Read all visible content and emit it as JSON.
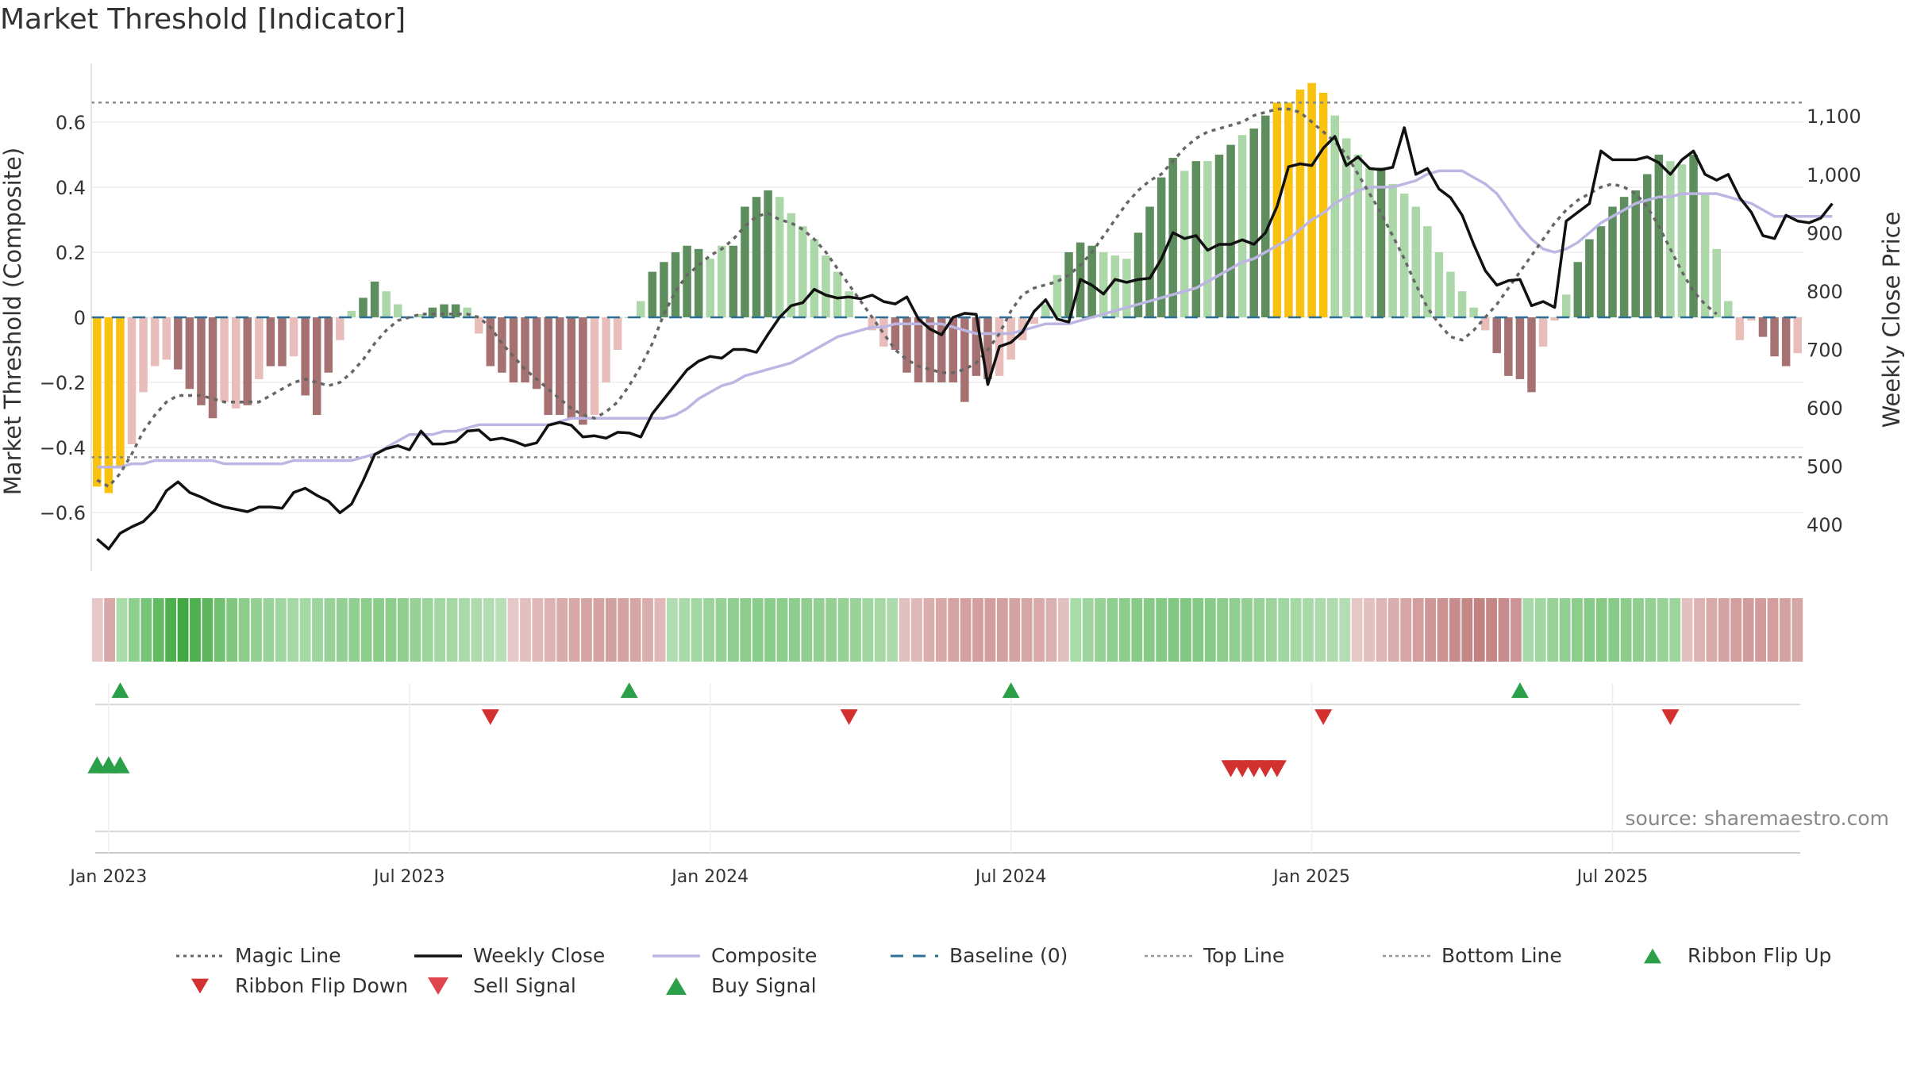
{
  "chart_data": {
    "type": "bar",
    "title": "Market Threshold [Indicator]",
    "ylabel": "Market Threshold (Composite)",
    "y2label": "Weekly Close Price",
    "source": "source: sharemaestro.com",
    "ylim": [
      -0.78,
      0.78
    ],
    "y2lim": [
      320,
      1190
    ],
    "yticks": [
      0.6,
      0.4,
      0.2,
      0,
      -0.2,
      -0.4,
      -0.6
    ],
    "ytick_labels": [
      "0.6",
      "0.4",
      "0.2",
      "0",
      "−0.2",
      "−0.4",
      "−0.6"
    ],
    "y2ticks": [
      1100,
      1000,
      900,
      800,
      700,
      600,
      500,
      400
    ],
    "y2tick_labels": [
      "1,100",
      "1,000",
      "900",
      "800",
      "700",
      "600",
      "500",
      "400"
    ],
    "xticks": [
      {
        "week": 1,
        "label": "Jan 2023"
      },
      {
        "week": 27,
        "label": "Jul 2023"
      },
      {
        "week": 53,
        "label": "Jan 2024"
      },
      {
        "week": 79,
        "label": "Jul 2024"
      },
      {
        "week": 105,
        "label": "Jan 2025"
      },
      {
        "week": 131,
        "label": "Jul 2025"
      }
    ],
    "top_line": 0.66,
    "bottom_line": -0.43,
    "colors": {
      "yellow": "#f9c20f",
      "dark_green": "#5e8e5d",
      "light_green": "#acd7a8",
      "dark_red": "#a57171",
      "light_red": "#e8bdba",
      "weekly_close": "#111111",
      "composite": "#bdb6e3",
      "magic_line": "#666666",
      "baseline": "#2e6f95",
      "buy": "#2ca048",
      "sell": "#d33030"
    },
    "composite_bars": [
      {
        "v": -0.52,
        "c": "yellow"
      },
      {
        "v": -0.54,
        "c": "yellow"
      },
      {
        "v": -0.46,
        "c": "yellow"
      },
      {
        "v": -0.39,
        "c": "light_red"
      },
      {
        "v": -0.23,
        "c": "light_red"
      },
      {
        "v": -0.15,
        "c": "light_red"
      },
      {
        "v": -0.13,
        "c": "light_red"
      },
      {
        "v": -0.16,
        "c": "dark_red"
      },
      {
        "v": -0.22,
        "c": "dark_red"
      },
      {
        "v": -0.27,
        "c": "dark_red"
      },
      {
        "v": -0.31,
        "c": "dark_red"
      },
      {
        "v": -0.26,
        "c": "light_red"
      },
      {
        "v": -0.28,
        "c": "light_red"
      },
      {
        "v": -0.27,
        "c": "dark_red"
      },
      {
        "v": -0.19,
        "c": "light_red"
      },
      {
        "v": -0.15,
        "c": "dark_red"
      },
      {
        "v": -0.15,
        "c": "dark_red"
      },
      {
        "v": -0.12,
        "c": "light_red"
      },
      {
        "v": -0.24,
        "c": "dark_red"
      },
      {
        "v": -0.3,
        "c": "dark_red"
      },
      {
        "v": -0.17,
        "c": "dark_red"
      },
      {
        "v": -0.07,
        "c": "light_red"
      },
      {
        "v": 0.02,
        "c": "light_green"
      },
      {
        "v": 0.06,
        "c": "dark_green"
      },
      {
        "v": 0.11,
        "c": "dark_green"
      },
      {
        "v": 0.08,
        "c": "light_green"
      },
      {
        "v": 0.04,
        "c": "light_green"
      },
      {
        "v": 0.0,
        "c": "light_green"
      },
      {
        "v": 0.01,
        "c": "light_green"
      },
      {
        "v": 0.03,
        "c": "dark_green"
      },
      {
        "v": 0.04,
        "c": "dark_green"
      },
      {
        "v": 0.04,
        "c": "dark_green"
      },
      {
        "v": 0.03,
        "c": "light_green"
      },
      {
        "v": -0.05,
        "c": "light_red"
      },
      {
        "v": -0.15,
        "c": "dark_red"
      },
      {
        "v": -0.17,
        "c": "dark_red"
      },
      {
        "v": -0.2,
        "c": "dark_red"
      },
      {
        "v": -0.2,
        "c": "dark_red"
      },
      {
        "v": -0.22,
        "c": "dark_red"
      },
      {
        "v": -0.3,
        "c": "dark_red"
      },
      {
        "v": -0.3,
        "c": "dark_red"
      },
      {
        "v": -0.31,
        "c": "dark_red"
      },
      {
        "v": -0.33,
        "c": "dark_red"
      },
      {
        "v": -0.3,
        "c": "light_red"
      },
      {
        "v": -0.2,
        "c": "light_red"
      },
      {
        "v": -0.1,
        "c": "light_red"
      },
      {
        "v": 0.0,
        "c": "light_green"
      },
      {
        "v": 0.05,
        "c": "light_green"
      },
      {
        "v": 0.14,
        "c": "dark_green"
      },
      {
        "v": 0.17,
        "c": "dark_green"
      },
      {
        "v": 0.2,
        "c": "dark_green"
      },
      {
        "v": 0.22,
        "c": "dark_green"
      },
      {
        "v": 0.21,
        "c": "dark_green"
      },
      {
        "v": 0.18,
        "c": "light_green"
      },
      {
        "v": 0.22,
        "c": "light_green"
      },
      {
        "v": 0.22,
        "c": "dark_green"
      },
      {
        "v": 0.34,
        "c": "dark_green"
      },
      {
        "v": 0.37,
        "c": "dark_green"
      },
      {
        "v": 0.39,
        "c": "dark_green"
      },
      {
        "v": 0.37,
        "c": "light_green"
      },
      {
        "v": 0.32,
        "c": "light_green"
      },
      {
        "v": 0.28,
        "c": "light_green"
      },
      {
        "v": 0.24,
        "c": "light_green"
      },
      {
        "v": 0.19,
        "c": "light_green"
      },
      {
        "v": 0.14,
        "c": "light_green"
      },
      {
        "v": 0.08,
        "c": "light_green"
      },
      {
        "v": 0.0,
        "c": "light_green"
      },
      {
        "v": -0.04,
        "c": "light_red"
      },
      {
        "v": -0.09,
        "c": "light_red"
      },
      {
        "v": -0.1,
        "c": "dark_red"
      },
      {
        "v": -0.17,
        "c": "dark_red"
      },
      {
        "v": -0.2,
        "c": "dark_red"
      },
      {
        "v": -0.2,
        "c": "dark_red"
      },
      {
        "v": -0.2,
        "c": "dark_red"
      },
      {
        "v": -0.2,
        "c": "dark_red"
      },
      {
        "v": -0.26,
        "c": "dark_red"
      },
      {
        "v": -0.18,
        "c": "dark_red"
      },
      {
        "v": -0.19,
        "c": "dark_red"
      },
      {
        "v": -0.18,
        "c": "light_red"
      },
      {
        "v": -0.13,
        "c": "light_red"
      },
      {
        "v": -0.07,
        "c": "light_red"
      },
      {
        "v": -0.02,
        "c": "light_red"
      },
      {
        "v": 0.04,
        "c": "light_green"
      },
      {
        "v": 0.13,
        "c": "light_green"
      },
      {
        "v": 0.2,
        "c": "dark_green"
      },
      {
        "v": 0.23,
        "c": "dark_green"
      },
      {
        "v": 0.22,
        "c": "dark_green"
      },
      {
        "v": 0.2,
        "c": "light_green"
      },
      {
        "v": 0.19,
        "c": "light_green"
      },
      {
        "v": 0.18,
        "c": "light_green"
      },
      {
        "v": 0.26,
        "c": "dark_green"
      },
      {
        "v": 0.34,
        "c": "dark_green"
      },
      {
        "v": 0.43,
        "c": "dark_green"
      },
      {
        "v": 0.49,
        "c": "dark_green"
      },
      {
        "v": 0.45,
        "c": "light_green"
      },
      {
        "v": 0.48,
        "c": "dark_green"
      },
      {
        "v": 0.48,
        "c": "light_green"
      },
      {
        "v": 0.5,
        "c": "dark_green"
      },
      {
        "v": 0.53,
        "c": "dark_green"
      },
      {
        "v": 0.56,
        "c": "light_green"
      },
      {
        "v": 0.58,
        "c": "dark_green"
      },
      {
        "v": 0.62,
        "c": "dark_green"
      },
      {
        "v": 0.66,
        "c": "yellow"
      },
      {
        "v": 0.66,
        "c": "yellow"
      },
      {
        "v": 0.7,
        "c": "yellow"
      },
      {
        "v": 0.72,
        "c": "yellow"
      },
      {
        "v": 0.69,
        "c": "yellow"
      },
      {
        "v": 0.62,
        "c": "light_green"
      },
      {
        "v": 0.55,
        "c": "light_green"
      },
      {
        "v": 0.5,
        "c": "light_green"
      },
      {
        "v": 0.46,
        "c": "light_green"
      },
      {
        "v": 0.46,
        "c": "dark_green"
      },
      {
        "v": 0.41,
        "c": "light_green"
      },
      {
        "v": 0.38,
        "c": "light_green"
      },
      {
        "v": 0.34,
        "c": "light_green"
      },
      {
        "v": 0.28,
        "c": "light_green"
      },
      {
        "v": 0.2,
        "c": "light_green"
      },
      {
        "v": 0.14,
        "c": "light_green"
      },
      {
        "v": 0.08,
        "c": "light_green"
      },
      {
        "v": 0.03,
        "c": "light_green"
      },
      {
        "v": -0.04,
        "c": "light_red"
      },
      {
        "v": -0.11,
        "c": "dark_red"
      },
      {
        "v": -0.18,
        "c": "dark_red"
      },
      {
        "v": -0.19,
        "c": "dark_red"
      },
      {
        "v": -0.23,
        "c": "dark_red"
      },
      {
        "v": -0.09,
        "c": "light_red"
      },
      {
        "v": -0.01,
        "c": "light_red"
      },
      {
        "v": 0.07,
        "c": "light_green"
      },
      {
        "v": 0.17,
        "c": "dark_green"
      },
      {
        "v": 0.24,
        "c": "dark_green"
      },
      {
        "v": 0.28,
        "c": "dark_green"
      },
      {
        "v": 0.34,
        "c": "dark_green"
      },
      {
        "v": 0.37,
        "c": "dark_green"
      },
      {
        "v": 0.39,
        "c": "dark_green"
      },
      {
        "v": 0.44,
        "c": "dark_green"
      },
      {
        "v": 0.5,
        "c": "dark_green"
      },
      {
        "v": 0.48,
        "c": "light_green"
      },
      {
        "v": 0.47,
        "c": "light_green"
      },
      {
        "v": 0.5,
        "c": "dark_green"
      },
      {
        "v": 0.38,
        "c": "light_green"
      },
      {
        "v": 0.21,
        "c": "light_green"
      },
      {
        "v": 0.05,
        "c": "light_green"
      },
      {
        "v": -0.07,
        "c": "light_red"
      },
      {
        "v": -0.01,
        "c": "light_red"
      },
      {
        "v": -0.06,
        "c": "dark_red"
      },
      {
        "v": -0.12,
        "c": "dark_red"
      },
      {
        "v": -0.15,
        "c": "dark_red"
      },
      {
        "v": -0.11,
        "c": "light_red"
      }
    ],
    "weekly_close": [
      375,
      358,
      385,
      396,
      405,
      425,
      458,
      473,
      455,
      447,
      437,
      430,
      426,
      422,
      430,
      430,
      428,
      455,
      462,
      450,
      440,
      420,
      435,
      475,
      520,
      530,
      535,
      528,
      560,
      538,
      538,
      542,
      560,
      562,
      545,
      548,
      543,
      535,
      540,
      570,
      575,
      570,
      550,
      552,
      548,
      558,
      557,
      550,
      590,
      615,
      640,
      665,
      680,
      688,
      685,
      700,
      700,
      695,
      726,
      755,
      775,
      780,
      803,
      793,
      788,
      790,
      787,
      793,
      782,
      778,
      790,
      752,
      735,
      725,
      755,
      762,
      760,
      640,
      705,
      712,
      730,
      765,
      785,
      752,
      747,
      820,
      810,
      795,
      820,
      815,
      820,
      822,
      855,
      900,
      890,
      895,
      870,
      880,
      880,
      888,
      880,
      900,
      945,
      1013,
      1018,
      1015,
      1045,
      1065,
      1015,
      1030,
      1010,
      1008,
      1012,
      1080,
      1000,
      1010,
      975,
      960,
      930,
      880,
      835,
      810,
      818,
      820,
      775,
      782,
      772,
      920,
      935,
      950,
      1040,
      1025,
      1025,
      1025,
      1030,
      1020,
      1000,
      1025,
      1040,
      1000,
      990,
      1000,
      960,
      935,
      895,
      890,
      930,
      920,
      917,
      925,
      950
    ],
    "composite_line": [
      -0.46,
      -0.46,
      -0.46,
      -0.45,
      -0.45,
      -0.44,
      -0.44,
      -0.44,
      -0.44,
      -0.44,
      -0.44,
      -0.45,
      -0.45,
      -0.45,
      -0.45,
      -0.45,
      -0.45,
      -0.44,
      -0.44,
      -0.44,
      -0.44,
      -0.44,
      -0.44,
      -0.43,
      -0.42,
      -0.4,
      -0.38,
      -0.36,
      -0.36,
      -0.36,
      -0.35,
      -0.35,
      -0.34,
      -0.33,
      -0.33,
      -0.33,
      -0.33,
      -0.33,
      -0.33,
      -0.33,
      -0.32,
      -0.31,
      -0.31,
      -0.31,
      -0.31,
      -0.31,
      -0.31,
      -0.31,
      -0.31,
      -0.31,
      -0.3,
      -0.28,
      -0.25,
      -0.23,
      -0.21,
      -0.2,
      -0.18,
      -0.17,
      -0.16,
      -0.15,
      -0.14,
      -0.12,
      -0.1,
      -0.08,
      -0.06,
      -0.05,
      -0.04,
      -0.03,
      -0.03,
      -0.02,
      -0.02,
      -0.02,
      -0.02,
      -0.02,
      -0.03,
      -0.04,
      -0.05,
      -0.05,
      -0.05,
      -0.05,
      -0.04,
      -0.03,
      -0.02,
      -0.02,
      -0.02,
      -0.01,
      0.0,
      0.01,
      0.02,
      0.03,
      0.04,
      0.05,
      0.06,
      0.07,
      0.08,
      0.09,
      0.11,
      0.13,
      0.15,
      0.17,
      0.18,
      0.2,
      0.22,
      0.24,
      0.27,
      0.3,
      0.32,
      0.35,
      0.37,
      0.39,
      0.4,
      0.4,
      0.4,
      0.41,
      0.42,
      0.44,
      0.45,
      0.45,
      0.45,
      0.43,
      0.41,
      0.38,
      0.33,
      0.28,
      0.24,
      0.21,
      0.2,
      0.21,
      0.23,
      0.26,
      0.29,
      0.31,
      0.33,
      0.35,
      0.36,
      0.37,
      0.37,
      0.38,
      0.38,
      0.38,
      0.38,
      0.37,
      0.36,
      0.35,
      0.33,
      0.31,
      0.31,
      0.31,
      0.31,
      0.31,
      0.31
    ],
    "magic_line": [
      -0.5,
      -0.52,
      -0.48,
      -0.42,
      -0.35,
      -0.3,
      -0.26,
      -0.24,
      -0.24,
      -0.24,
      -0.25,
      -0.26,
      -0.26,
      -0.26,
      -0.26,
      -0.24,
      -0.22,
      -0.2,
      -0.19,
      -0.2,
      -0.21,
      -0.2,
      -0.17,
      -0.13,
      -0.08,
      -0.04,
      -0.01,
      0.0,
      0.01,
      0.01,
      0.01,
      0.01,
      0.01,
      0.0,
      -0.03,
      -0.08,
      -0.12,
      -0.16,
      -0.19,
      -0.22,
      -0.25,
      -0.28,
      -0.3,
      -0.31,
      -0.29,
      -0.26,
      -0.21,
      -0.15,
      -0.08,
      0.01,
      0.08,
      0.13,
      0.16,
      0.19,
      0.21,
      0.24,
      0.28,
      0.31,
      0.32,
      0.3,
      0.29,
      0.27,
      0.24,
      0.2,
      0.15,
      0.1,
      0.05,
      0.0,
      -0.05,
      -0.1,
      -0.13,
      -0.15,
      -0.16,
      -0.17,
      -0.17,
      -0.16,
      -0.14,
      -0.1,
      -0.05,
      0.02,
      0.07,
      0.09,
      0.1,
      0.11,
      0.13,
      0.16,
      0.2,
      0.25,
      0.3,
      0.35,
      0.39,
      0.42,
      0.44,
      0.48,
      0.52,
      0.55,
      0.57,
      0.58,
      0.59,
      0.6,
      0.62,
      0.63,
      0.64,
      0.64,
      0.63,
      0.6,
      0.57,
      0.54,
      0.5,
      0.44,
      0.38,
      0.32,
      0.25,
      0.18,
      0.1,
      0.03,
      -0.02,
      -0.06,
      -0.07,
      -0.04,
      0.0,
      0.04,
      0.09,
      0.14,
      0.19,
      0.24,
      0.29,
      0.33,
      0.36,
      0.38,
      0.4,
      0.41,
      0.4,
      0.38,
      0.34,
      0.28,
      0.21,
      0.14,
      0.08,
      0.04,
      0.01
    ],
    "ribbon_colors": [
      "#e6c8c8",
      "#d8a8a8",
      "#a8dca8",
      "#8dd08d",
      "#76c476",
      "#62ba62",
      "#4eaf4e",
      "#42a842",
      "#4eaf4e",
      "#5db65d",
      "#70c070",
      "#80c880",
      "#8ccd8c",
      "#94d094",
      "#9ad39a",
      "#a0d6a0",
      "#a4d8a4",
      "#a4d8a4",
      "#9ed59e",
      "#98d298",
      "#94d094",
      "#90ce90",
      "#8ccd8c",
      "#8acc8a",
      "#8ccd8c",
      "#90ce90",
      "#96d196",
      "#9cd49c",
      "#a2d7a2",
      "#a6d8a6",
      "#aad9aa",
      "#aedbae",
      "#b2dcb2",
      "#b8dfb8",
      "#e6c8c8",
      "#e2c0c0",
      "#dfb8b8",
      "#dcb2b2",
      "#d9acac",
      "#d7a8a8",
      "#d5a4a4",
      "#d4a2a2",
      "#d3a0a0",
      "#d4a2a2",
      "#d6a6a6",
      "#dbaeae",
      "#e0b8b8",
      "#b2dcb2",
      "#aad9aa",
      "#a2d7a2",
      "#9cd49c",
      "#96d196",
      "#90ce90",
      "#8ccd8c",
      "#8acc8a",
      "#8acc8a",
      "#8ccd8c",
      "#8ecd8e",
      "#90ce90",
      "#92cf92",
      "#94d094",
      "#96d196",
      "#9ad39a",
      "#a0d6a0",
      "#a6d8a6",
      "#aedbae",
      "#e2c0c0",
      "#dfb8b8",
      "#dbaeae",
      "#d8a8a8",
      "#d6a4a4",
      "#d4a0a0",
      "#d29e9e",
      "#d29e9e",
      "#d3a0a0",
      "#d4a2a2",
      "#d6a6a6",
      "#d8aaaa",
      "#dbb0b0",
      "#e2c0c0",
      "#a8dca8",
      "#9ed59e",
      "#96d196",
      "#90ce90",
      "#8ccd8c",
      "#88cb88",
      "#86ca86",
      "#84c984",
      "#82c882",
      "#82c882",
      "#84c984",
      "#88cb88",
      "#8ccd8c",
      "#90ce90",
      "#94d094",
      "#98d298",
      "#9cd49c",
      "#a0d6a0",
      "#a4d8a4",
      "#a8d9a8",
      "#acdaac",
      "#b0dbb0",
      "#b4ddb4",
      "#e6c8c8",
      "#e2c0c0",
      "#deb6b6",
      "#daaeae",
      "#d6a6a6",
      "#d29e9e",
      "#ce9898",
      "#cb9292",
      "#c88c8c",
      "#c58686",
      "#c38282",
      "#c58686",
      "#c88c8c",
      "#cc9494",
      "#a8d9a8",
      "#a0d6a0",
      "#98d298",
      "#92cf92",
      "#8ccd8c",
      "#88cb88",
      "#86ca86",
      "#88cb88",
      "#8ccd8c",
      "#90ce90",
      "#94d094",
      "#98d298",
      "#9cd49c",
      "#e2c0c0",
      "#dcb2b2",
      "#d8aaaa",
      "#d4a2a2",
      "#d29e9e",
      "#d09c9c",
      "#d09c9c",
      "#d29e9e",
      "#d4a2a2",
      "#d6a6a6"
    ],
    "ribbon_flip_up_weeks": [
      2,
      46,
      79,
      123
    ],
    "ribbon_flip_down_weeks": [
      34,
      65,
      106,
      136
    ],
    "buy_signal_weeks": [
      0,
      1,
      2
    ],
    "sell_signal_weeks": [
      98,
      99,
      100,
      101,
      102
    ],
    "legend": [
      {
        "label": "Magic Line",
        "style": "dotted-grey"
      },
      {
        "label": "Weekly Close",
        "style": "solid-black"
      },
      {
        "label": "Composite",
        "style": "solid-lavender"
      },
      {
        "label": "Baseline (0)",
        "style": "dashed-blue"
      },
      {
        "label": "Top Line",
        "style": "dotted-light"
      },
      {
        "label": "Bottom Line",
        "style": "dotted-light"
      },
      {
        "label": "Ribbon Flip Up",
        "style": "triangle-up-green"
      },
      {
        "label": "Ribbon Flip Down",
        "style": "triangle-down-red"
      },
      {
        "label": "Sell Signal",
        "style": "triangle-down-red-large"
      },
      {
        "label": "Buy Signal",
        "style": "triangle-up-green-large"
      }
    ]
  }
}
